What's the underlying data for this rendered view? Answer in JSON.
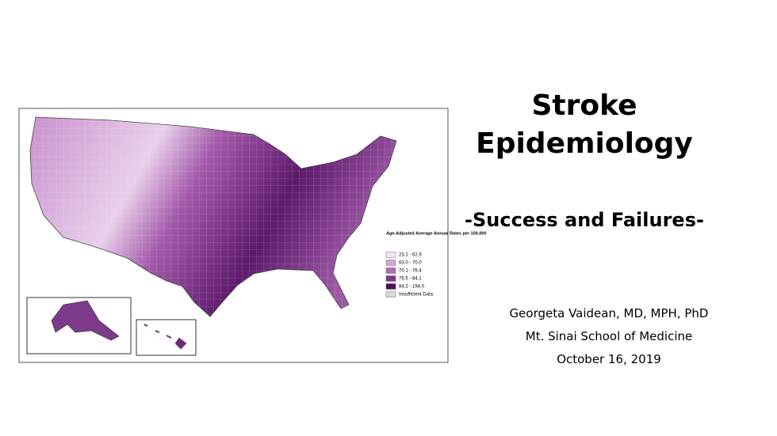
{
  "slide": {
    "title": "Stroke Epidemiology",
    "subtitle": "-Success and Failures-",
    "author": "Georgeta Vaidean, MD, MPH, PhD",
    "affiliation": "Mt. Sinai School of Medicine",
    "date": "October 16, 2019",
    "map": {
      "legend_title": "Age-Adjusted Average Annual Rates per 100,000",
      "legend": [
        {
          "label": "23.1 - 62.9",
          "color": "#f3e4f3"
        },
        {
          "label": "63.0 - 70.0",
          "color": "#d6a8d8"
        },
        {
          "label": "70.1 - 76.4",
          "color": "#b06ab8"
        },
        {
          "label": "76.5 - 84.1",
          "color": "#80378c"
        },
        {
          "label": "84.2 - 194.0",
          "color": "#4d0e5c"
        },
        {
          "label": "Insufficient Data",
          "color": "#d9d9d9"
        }
      ]
    }
  }
}
